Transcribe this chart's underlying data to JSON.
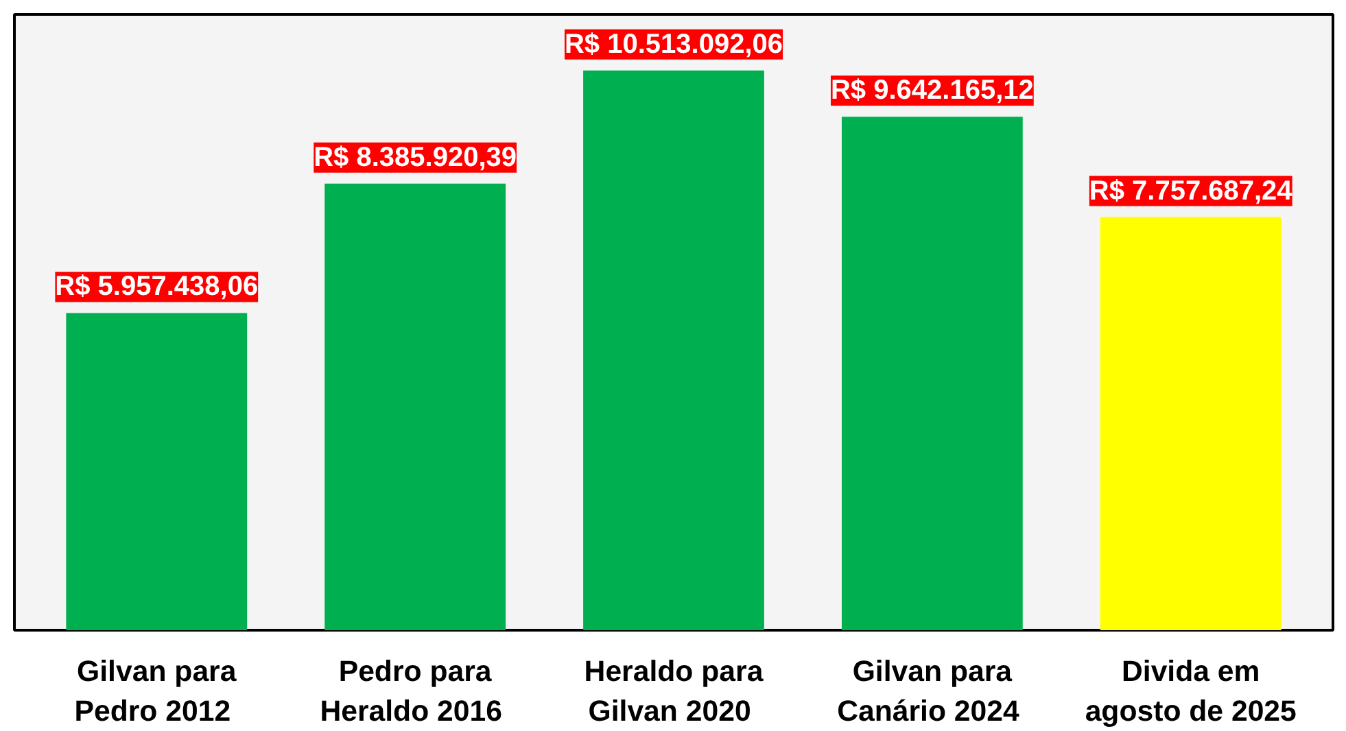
{
  "chart_data": {
    "type": "bar",
    "categories": [
      "Gilvan para\nPedro  2012",
      "Pedro para\nHeraldo  2016",
      "Heraldo para\nGilvan  2020",
      "Gilvan para\nCanário  2024",
      "Divida em\nagosto de 2025"
    ],
    "values": [
      5957438.06,
      8385920.39,
      10513092.06,
      9642165.12,
      7757687.24
    ],
    "colors": [
      "#00b050",
      "#00b050",
      "#00b050",
      "#00b050",
      "#ffff00"
    ],
    "value_labels": [
      "R$ 5.957.438,06",
      "R$ 8.385.920,39",
      "R$ 10.513.092,06",
      "R$ 9.642.165,12",
      "R$ 7.757.687,24"
    ],
    "grid": false
  }
}
